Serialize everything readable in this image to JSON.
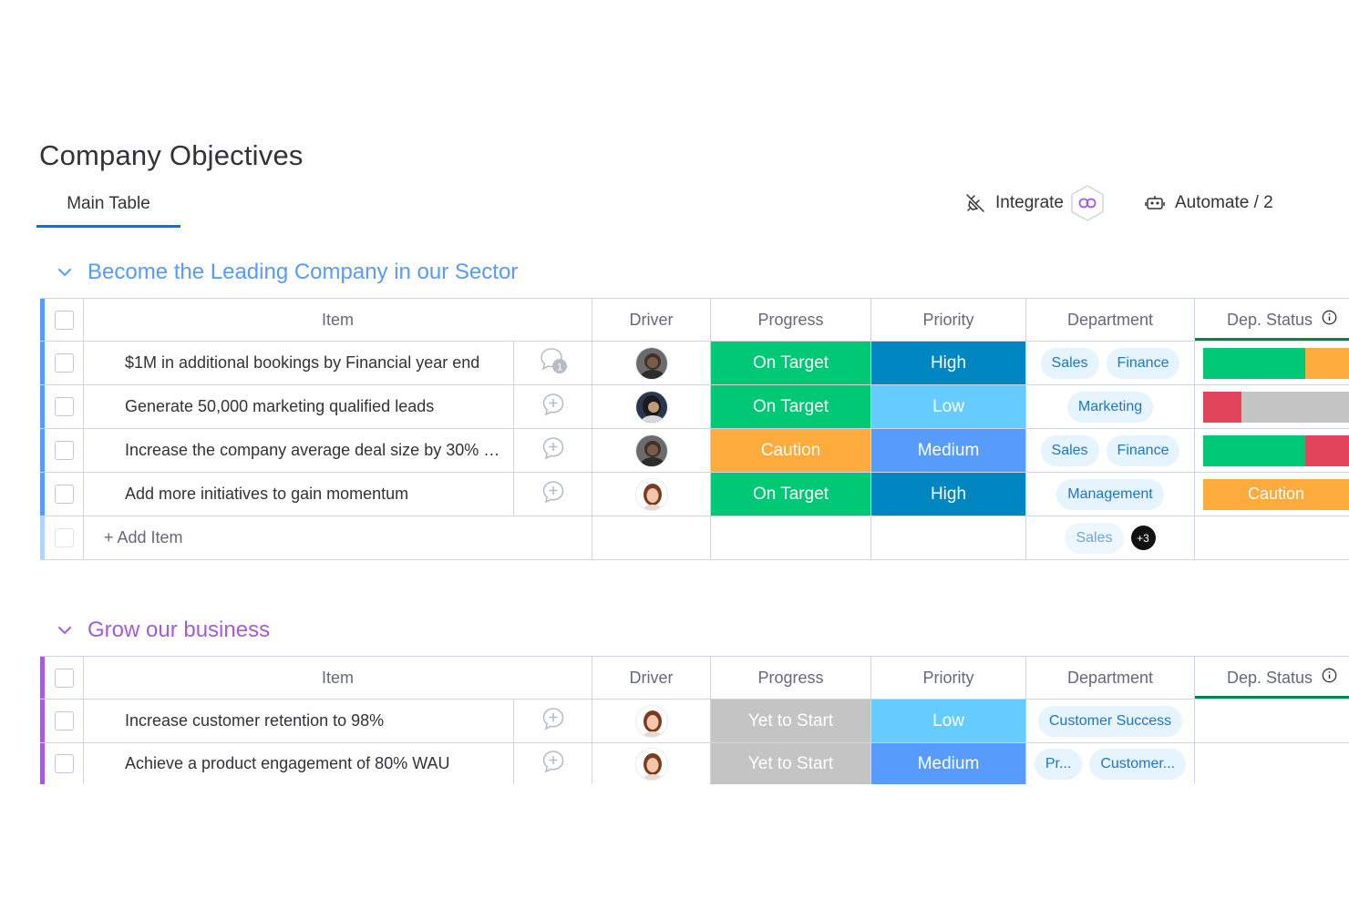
{
  "page": {
    "title": "Company Objectives"
  },
  "tabs": [
    {
      "label": "Main Table"
    }
  ],
  "toolbar": {
    "integrate_label": "Integrate",
    "automate_label": "Automate / 2"
  },
  "columns": {
    "item": "Item",
    "driver": "Driver",
    "progress": "Progress",
    "priority": "Priority",
    "department": "Department",
    "dep_status": "Dep. Status"
  },
  "colors": {
    "on_target": "#00c875",
    "caution": "#fdab3d",
    "yet_to_start": "#c4c4c4",
    "high": "#0086c0",
    "low": "#66ccff",
    "medium": "#579bfc",
    "stuck": "#e2445c",
    "group1": "#579bfc",
    "group2": "#a25ddc"
  },
  "groups": [
    {
      "title": "Become the Leading Company in our Sector",
      "color": "#579bfc",
      "rows": [
        {
          "item": "$1M in additional bookings by Financial year end",
          "update_icon": "chat-bubble-with-count-icon",
          "update_count": "1",
          "driver_avatar": "avatar-dark-1",
          "progress": "On Target",
          "priority": "High",
          "departments": [
            "Sales",
            "Finance"
          ],
          "dep_status": [
            {
              "color": "#00c875",
              "fraction": 0.7
            },
            {
              "color": "#fdab3d",
              "fraction": 0.3
            }
          ]
        },
        {
          "item": "Generate 50,000 marketing qualified leads",
          "update_icon": "add-update-icon",
          "driver_avatar": "avatar-dark-2",
          "progress": "On Target",
          "priority": "Low",
          "departments": [
            "Marketing"
          ],
          "dep_status": [
            {
              "color": "#e2445c",
              "fraction": 0.26
            },
            {
              "color": "#c4c4c4",
              "fraction": 0.74
            }
          ]
        },
        {
          "item": "Increase the company average deal size by 30% …",
          "update_icon": "add-update-icon",
          "driver_avatar": "avatar-dark-1",
          "progress": "Caution",
          "priority": "Medium",
          "departments": [
            "Sales",
            "Finance"
          ],
          "dep_status": [
            {
              "color": "#00c875",
              "fraction": 0.7
            },
            {
              "color": "#e2445c",
              "fraction": 0.3
            }
          ]
        },
        {
          "item": "Add more initiatives to gain momentum",
          "update_icon": "add-update-icon",
          "driver_avatar": "avatar-woman",
          "progress": "On Target",
          "priority": "High",
          "departments": [
            "Management"
          ],
          "dep_status_label": "Caution"
        }
      ],
      "add_item_label": "+ Add Item",
      "summary_department": "Sales",
      "summary_more": "+3"
    },
    {
      "title": "Grow our business",
      "color": "#a25ddc",
      "rows": [
        {
          "item": "Increase customer retention to 98%",
          "update_icon": "add-update-icon",
          "driver_avatar": "avatar-woman",
          "progress": "Yet to Start",
          "priority": "Low",
          "departments": [
            "Customer Success"
          ]
        },
        {
          "item": "Achieve a product engagement of 80% WAU",
          "update_icon": "add-update-icon",
          "driver_avatar": "avatar-woman",
          "progress": "Yet to Start",
          "priority": "Medium",
          "departments": [
            "Pr...",
            "Customer..."
          ]
        }
      ]
    }
  ]
}
